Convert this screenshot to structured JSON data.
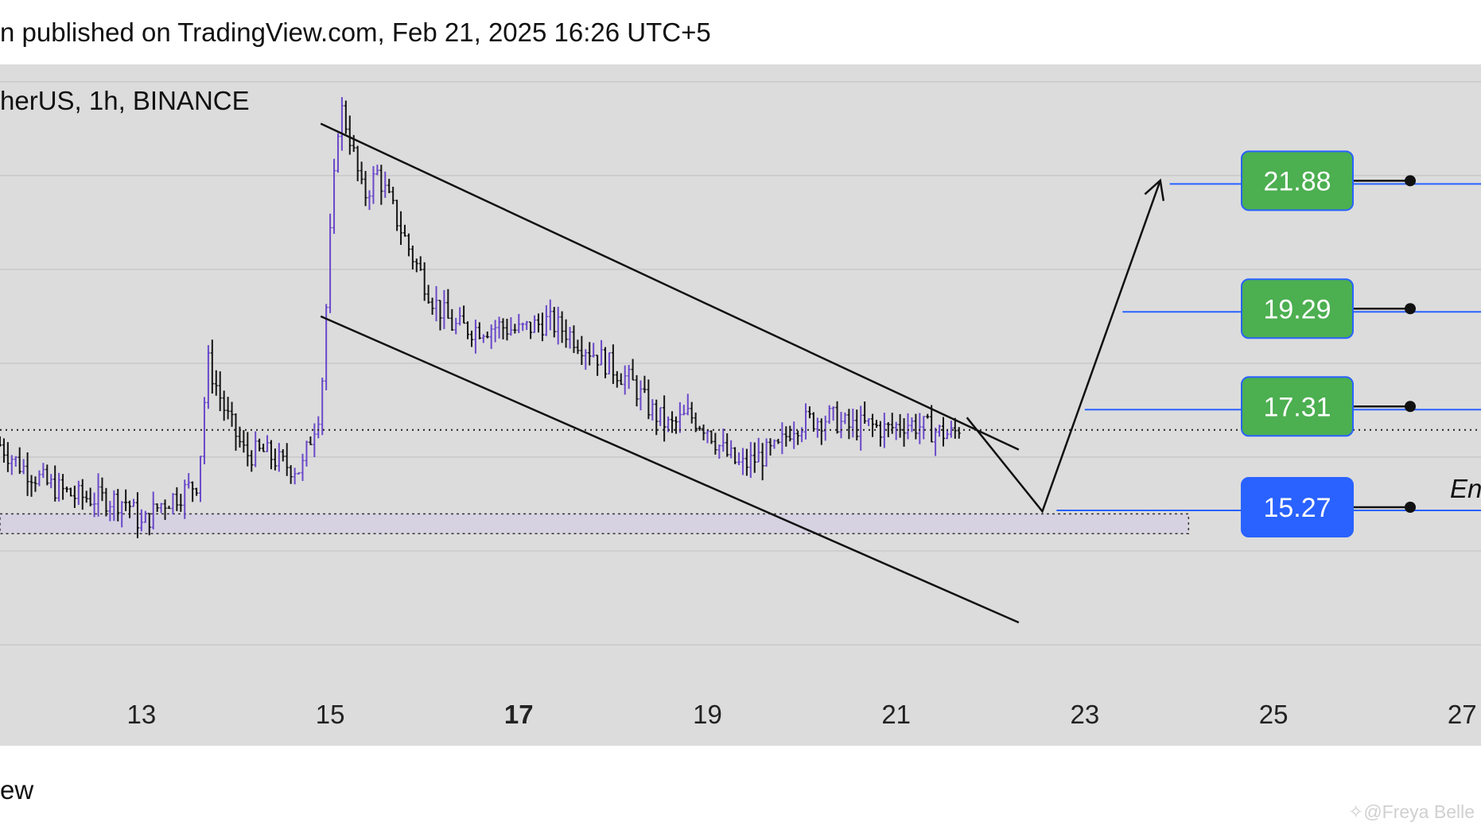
{
  "header": {
    "text": "n published on TradingView.com, Feb 21, 2025 16:26 UTC+5"
  },
  "footer": {
    "text": "ew"
  },
  "watermark": {
    "text": "✧@Freya Belle"
  },
  "colors": {
    "plot_bg": "#dcdcdc",
    "candle_up": "#6a49c9",
    "candle_down": "#151515",
    "target_box": "#4caf50",
    "entry_box": "#2962ff",
    "level_line": "#2962ff",
    "zone_fill": "#d6d2e2"
  },
  "chart_data": {
    "type": "candlestick",
    "title": "herUS, 1h, BINANCE",
    "x_axis": {
      "ticks": [
        "13",
        "15",
        "17",
        "19",
        "21",
        "23",
        "25",
        "27"
      ],
      "bold_tick": "17",
      "range_days": [
        11.5,
        27.2
      ]
    },
    "y_axis": {
      "range": [
        11.6,
        24.3
      ],
      "grid_step": 1.9
    },
    "price_levels": [
      {
        "label": "21.88",
        "value": 21.88,
        "kind": "target",
        "from_day": 23.9
      },
      {
        "label": "19.29",
        "value": 19.29,
        "kind": "target",
        "from_day": 23.4
      },
      {
        "label": "17.31",
        "value": 17.31,
        "kind": "target",
        "from_day": 23.0
      },
      {
        "label": "15.27",
        "value": 15.27,
        "kind": "entry",
        "from_day": 22.7
      }
    ],
    "entry_label": "En",
    "current_price": 16.9,
    "support_zone": {
      "from_day": 11.5,
      "to_day": 24.1,
      "low": 14.8,
      "high": 15.2
    },
    "channel": {
      "upper": [
        [
          14.9,
          23.1
        ],
        [
          22.3,
          16.5
        ]
      ],
      "lower": [
        [
          14.9,
          19.2
        ],
        [
          22.3,
          13.0
        ]
      ]
    },
    "projection_path": [
      [
        21.75,
        17.15
      ],
      [
        22.55,
        15.25
      ],
      [
        23.8,
        21.95
      ]
    ],
    "price_path": [
      [
        11.5,
        16.6
      ],
      [
        11.7,
        16.2
      ],
      [
        12.0,
        15.8
      ],
      [
        12.3,
        15.55
      ],
      [
        12.6,
        15.5
      ],
      [
        12.85,
        15.45
      ],
      [
        13.0,
        14.95
      ],
      [
        13.2,
        15.4
      ],
      [
        13.4,
        15.6
      ],
      [
        13.6,
        15.85
      ],
      [
        13.7,
        18.3
      ],
      [
        13.9,
        17.2
      ],
      [
        14.1,
        16.4
      ],
      [
        14.3,
        16.45
      ],
      [
        14.5,
        16.2
      ],
      [
        14.7,
        16.1
      ],
      [
        14.8,
        16.8
      ],
      [
        14.9,
        17.4
      ],
      [
        15.0,
        20.8
      ],
      [
        15.1,
        23.5
      ],
      [
        15.2,
        22.9
      ],
      [
        15.35,
        21.6
      ],
      [
        15.5,
        22.1
      ],
      [
        15.7,
        21.2
      ],
      [
        15.85,
        20.5
      ],
      [
        16.1,
        19.5
      ],
      [
        16.3,
        19.0
      ],
      [
        16.5,
        18.95
      ],
      [
        16.8,
        19.0
      ],
      [
        17.0,
        18.9
      ],
      [
        17.3,
        19.1
      ],
      [
        17.5,
        18.9
      ],
      [
        17.8,
        18.45
      ],
      [
        18.0,
        18.15
      ],
      [
        18.2,
        17.85
      ],
      [
        18.4,
        17.3
      ],
      [
        18.6,
        16.95
      ],
      [
        18.8,
        17.2
      ],
      [
        19.0,
        16.95
      ],
      [
        19.15,
        16.5
      ],
      [
        19.35,
        16.15
      ],
      [
        19.55,
        16.35
      ],
      [
        19.75,
        16.5
      ],
      [
        19.9,
        17.0
      ],
      [
        20.1,
        17.1
      ],
      [
        20.3,
        17.15
      ],
      [
        20.5,
        16.95
      ],
      [
        20.7,
        17.0
      ],
      [
        20.9,
        16.9
      ],
      [
        21.1,
        17.05
      ],
      [
        21.3,
        16.95
      ],
      [
        21.45,
        16.85
      ],
      [
        21.6,
        16.8
      ],
      [
        21.7,
        17.05
      ]
    ]
  }
}
